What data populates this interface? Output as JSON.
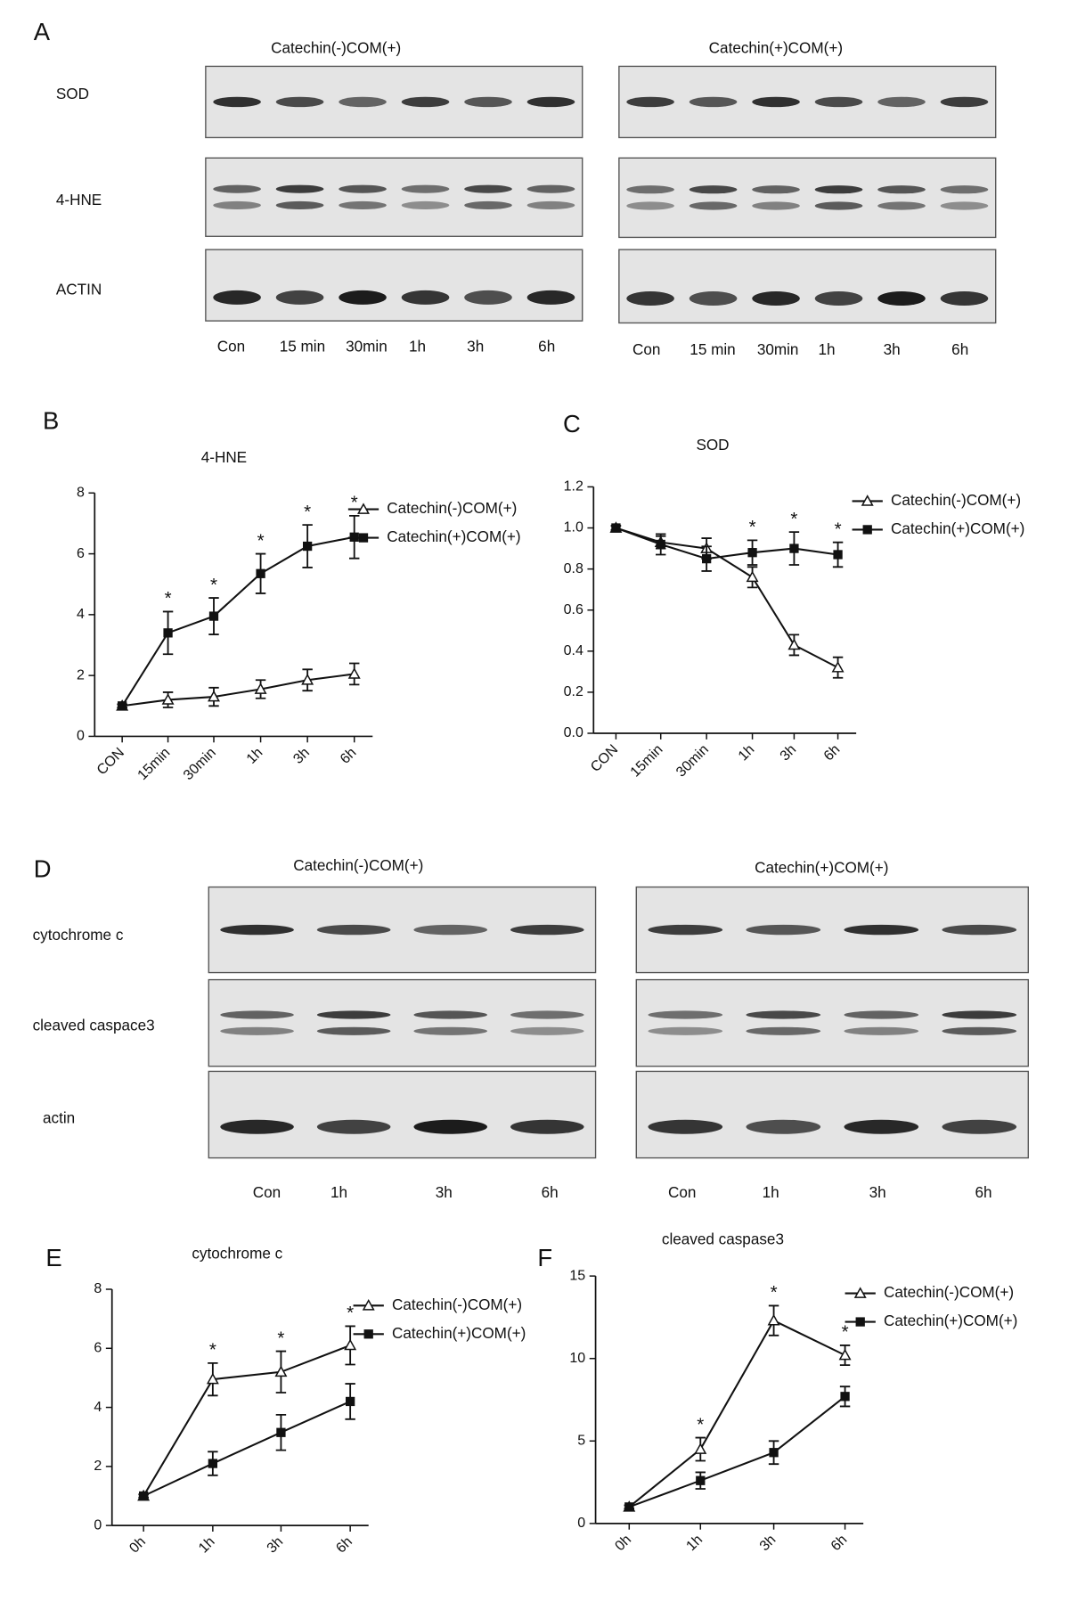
{
  "panel_letters": [
    "A",
    "B",
    "C",
    "D",
    "E",
    "F"
  ],
  "blot_groups": [
    {
      "row_labels": [
        "SOD",
        "4-HNE",
        "ACTIN"
      ],
      "blots": [
        {
          "title": "Catechin(-)COM(+)",
          "lanes": [
            "Con",
            "15 min",
            "30min",
            "1h",
            "3h",
            "6h"
          ]
        },
        {
          "title": "Catechin(+)COM(+)",
          "lanes": [
            "Con",
            "15 min",
            "30min",
            "1h",
            "3h",
            "6h"
          ]
        }
      ]
    },
    {
      "row_labels": [
        "cytochrome c",
        "cleaved caspace3",
        "actin"
      ],
      "blots": [
        {
          "title": "Catechin(-)COM(+)",
          "lanes": [
            "Con",
            "1h",
            "3h",
            "6h"
          ]
        },
        {
          "title": "Catechin(+)COM(+)",
          "lanes": [
            "Con",
            "1h",
            "3h",
            "6h"
          ]
        }
      ]
    }
  ],
  "chart_data": [
    {
      "type": "line",
      "title": "4-HNE",
      "categories": [
        "CON",
        "15min",
        "30min",
        "1h",
        "3h",
        "6h"
      ],
      "series": [
        {
          "name": "Catechin(-)COM(+)",
          "color": "#111111",
          "marker": "triangle-open",
          "values": [
            1,
            1.2,
            1.3,
            1.55,
            1.85,
            2.05
          ],
          "errors": [
            0.05,
            0.25,
            0.3,
            0.3,
            0.35,
            0.35
          ]
        },
        {
          "name": "Catechin(+)COM(+)",
          "color": "#111111",
          "marker": "square-filled",
          "values": [
            1,
            3.4,
            3.95,
            5.35,
            6.25,
            6.55
          ],
          "errors": [
            0.05,
            0.7,
            0.6,
            0.65,
            0.7,
            0.7
          ]
        }
      ],
      "ylim": [
        0,
        8
      ],
      "yticks": [
        0,
        2,
        4,
        6,
        8
      ],
      "annotations": [
        {
          "text": "*",
          "x": "15min"
        },
        {
          "text": "*",
          "x": "30min"
        },
        {
          "text": "*",
          "x": "1h"
        },
        {
          "text": "*",
          "x": "3h"
        },
        {
          "text": "*",
          "x": "6h"
        }
      ]
    },
    {
      "type": "line",
      "title": "SOD",
      "categories": [
        "CON",
        "15min",
        "30min",
        "1h",
        "3h",
        "6h"
      ],
      "series": [
        {
          "name": "Catechin(-)COM(+)",
          "color": "#111111",
          "marker": "triangle-open",
          "values": [
            1.0,
            0.93,
            0.9,
            0.76,
            0.43,
            0.32
          ],
          "errors": [
            0.01,
            0.03,
            0.05,
            0.05,
            0.05,
            0.05
          ]
        },
        {
          "name": "Catechin(+)COM(+)",
          "color": "#111111",
          "marker": "square-filled",
          "values": [
            1.0,
            0.92,
            0.85,
            0.88,
            0.9,
            0.87
          ],
          "errors": [
            0.01,
            0.05,
            0.06,
            0.06,
            0.08,
            0.06
          ]
        }
      ],
      "ylim": [
        0,
        1.2
      ],
      "yticks": [
        {
          "value": 0,
          "label": "0.0"
        },
        0.2,
        0.4,
        0.6,
        0.8,
        {
          "value": 1,
          "label": "1.0"
        },
        1.2
      ],
      "annotations": [
        {
          "text": "*",
          "x": "1h"
        },
        {
          "text": "*",
          "x": "3h"
        },
        {
          "text": "*",
          "x": "6h"
        }
      ]
    },
    {
      "type": "line",
      "title": "cytochrome c",
      "categories": [
        "0h",
        "1h",
        "3h",
        "6h"
      ],
      "series": [
        {
          "name": "Catechin(-)COM(+)",
          "color": "#111111",
          "marker": "triangle-open",
          "values": [
            1,
            4.95,
            5.2,
            6.1
          ],
          "errors": [
            0.05,
            0.55,
            0.7,
            0.65
          ]
        },
        {
          "name": "Catechin(+)COM(+)",
          "color": "#111111",
          "marker": "square-filled",
          "values": [
            1,
            2.1,
            3.15,
            4.2
          ],
          "errors": [
            0.05,
            0.4,
            0.6,
            0.6
          ]
        }
      ],
      "ylim": [
        0,
        8
      ],
      "yticks": [
        0,
        2,
        4,
        6,
        8
      ],
      "annotations": [
        {
          "text": "*",
          "x": "1h"
        },
        {
          "text": "*",
          "x": "3h"
        },
        {
          "text": "*",
          "x": "6h"
        }
      ]
    },
    {
      "type": "line",
      "title": "cleaved caspase3",
      "categories": [
        "0h",
        "1h",
        "3h",
        "6h"
      ],
      "series": [
        {
          "name": "Catechin(-)COM(+)",
          "color": "#111111",
          "marker": "triangle-open",
          "values": [
            1,
            4.5,
            12.3,
            10.2
          ],
          "errors": [
            0.1,
            0.7,
            0.9,
            0.6
          ]
        },
        {
          "name": "Catechin(+)COM(+)",
          "color": "#111111",
          "marker": "square-filled",
          "values": [
            1,
            2.6,
            4.3,
            7.7
          ],
          "errors": [
            0.1,
            0.5,
            0.7,
            0.6
          ]
        }
      ],
      "ylim": [
        0,
        15
      ],
      "yticks": [
        0,
        5,
        10,
        15
      ],
      "annotations": [
        {
          "text": "*",
          "x": "1h"
        },
        {
          "text": "*",
          "x": "3h"
        },
        {
          "text": "*",
          "x": "6h"
        }
      ]
    }
  ]
}
